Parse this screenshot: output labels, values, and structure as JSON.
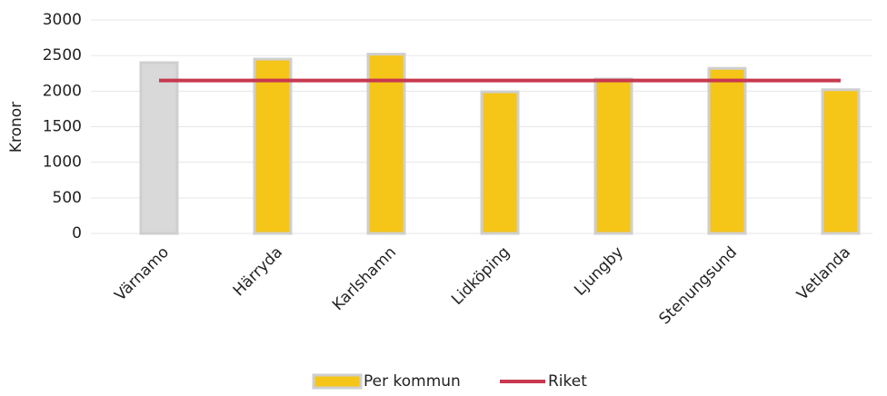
{
  "chart_data": {
    "type": "bar",
    "y_label": "Kronor",
    "categories": [
      "Värnamo",
      "Härryda",
      "Karlshamn",
      "Lidköping",
      "Ljungby",
      "Stenungsund",
      "Vetlanda"
    ],
    "series": [
      {
        "name": "Per kommun",
        "type": "bar",
        "color": "#f5c518",
        "colors": [
          "#d9d9d9",
          "#f5c518",
          "#f5c518",
          "#f5c518",
          "#f5c518",
          "#f5c518",
          "#f5c518"
        ],
        "values": [
          2400,
          2450,
          2520,
          1990,
          2170,
          2320,
          2020
        ]
      },
      {
        "name": "Riket",
        "type": "line",
        "color": "#c8384f",
        "values": [
          2150,
          2150,
          2150,
          2150,
          2150,
          2150,
          2150
        ]
      }
    ],
    "ylim": [
      0,
      3000
    ],
    "yticks": [
      0,
      500,
      1000,
      1500,
      2000,
      2500,
      3000
    ],
    "grid": true,
    "legend": "bottom"
  }
}
